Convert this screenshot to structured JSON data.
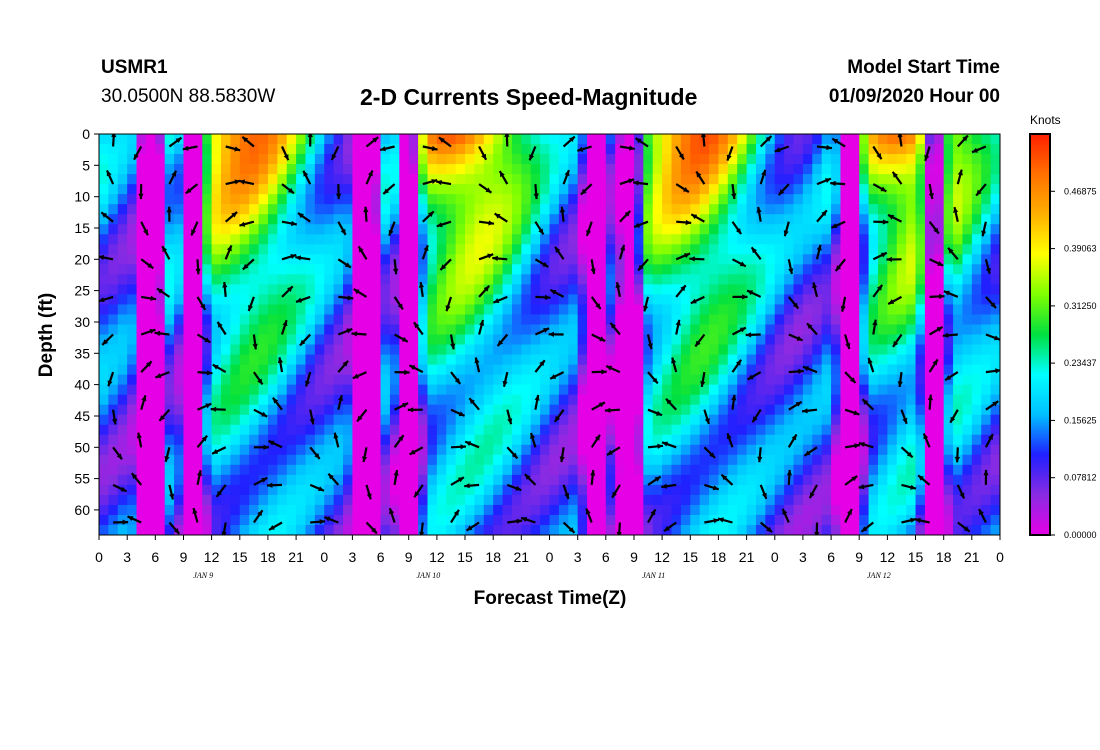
{
  "header": {
    "station": "USMR1",
    "coords": "30.0500N 88.5830W",
    "title": "2-D Currents Speed-Magnitude",
    "start_label": "Model Start Time",
    "start_value": "01/09/2020 Hour 00"
  },
  "chart_data": {
    "type": "heatmap",
    "title": "2-D Currents Speed-Magnitude",
    "xlabel": "Forecast Time(Z)",
    "ylabel": "Depth (ft)",
    "x_ticks": [
      "0",
      "3",
      "6",
      "9",
      "12",
      "15",
      "18",
      "21",
      "0",
      "3",
      "6",
      "9",
      "12",
      "15",
      "18",
      "21",
      "0",
      "3",
      "6",
      "9",
      "12",
      "15",
      "18",
      "21",
      "0",
      "3",
      "6",
      "9",
      "12",
      "15",
      "18",
      "21",
      "0"
    ],
    "y_ticks": [
      "0",
      "5",
      "10",
      "15",
      "20",
      "25",
      "30",
      "35",
      "40",
      "45",
      "50",
      "55",
      "60"
    ],
    "y_range": [
      0,
      64
    ],
    "day_labels": [
      "JAN 9",
      "JAN 10",
      "JAN 11",
      "JAN 12"
    ],
    "colorbar": {
      "unit": "Knots",
      "ticks": [
        "0.46875",
        "0.39063",
        "0.31250",
        "0.23437",
        "0.15625",
        "0.07812",
        "0.00000"
      ],
      "range": [
        0,
        0.546875
      ],
      "colors": [
        "#e600e6",
        "#8a2be2",
        "#2020ff",
        "#00bfff",
        "#00ffff",
        "#00e040",
        "#7fff00",
        "#ffff00",
        "#ffb000",
        "#ff7000",
        "#ff2000"
      ]
    }
  }
}
